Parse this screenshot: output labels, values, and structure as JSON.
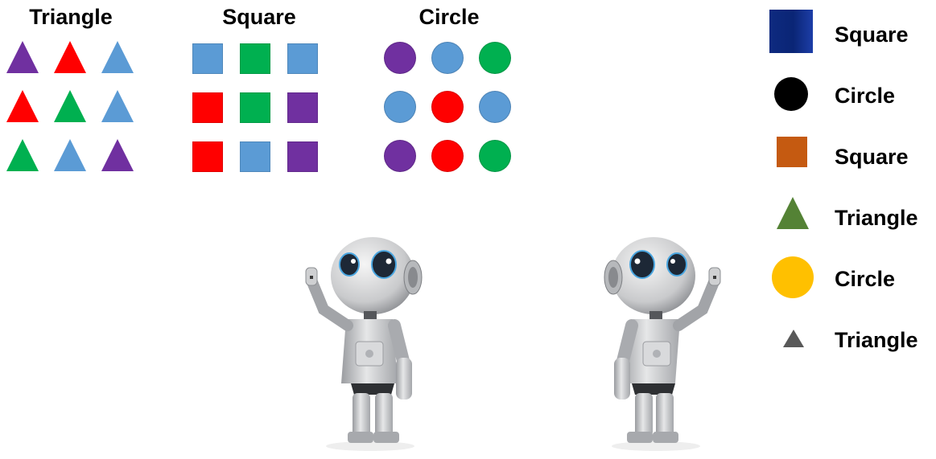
{
  "headings": {
    "triangle": "Triangle",
    "square": "Square",
    "circle": "Circle"
  },
  "colors": {
    "purple": "#7030a0",
    "red": "#ff0000",
    "green": "#00b050",
    "blue": "#5b9bd5"
  },
  "grids": {
    "triangle": [
      [
        "purple",
        "red",
        "blue"
      ],
      [
        "red",
        "green",
        "blue"
      ],
      [
        "green",
        "blue",
        "purple"
      ]
    ],
    "square": [
      [
        "blue",
        "green",
        "blue"
      ],
      [
        "red",
        "green",
        "purple"
      ],
      [
        "red",
        "blue",
        "purple"
      ]
    ],
    "circle": [
      [
        "purple",
        "blue",
        "green"
      ],
      [
        "blue",
        "red",
        "blue"
      ],
      [
        "purple",
        "red",
        "green"
      ]
    ]
  },
  "legend": [
    {
      "shape": "square-large",
      "color": "#0e2a80",
      "label": "Square"
    },
    {
      "shape": "circle",
      "color": "#000000",
      "label": "Circle"
    },
    {
      "shape": "square-medium",
      "color": "#c55a11",
      "label": "Square"
    },
    {
      "shape": "triangle",
      "color": "#548235",
      "label": "Triangle"
    },
    {
      "shape": "circle-large",
      "color": "#ffc000",
      "label": "Circle"
    },
    {
      "shape": "triangle-small",
      "color": "#595959",
      "label": "Triangle"
    }
  ]
}
